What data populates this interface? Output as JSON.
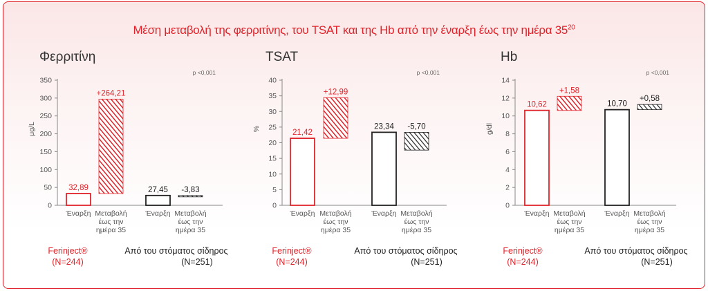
{
  "title": "Μέση μεταβολή της φερριτίνης, του TSAT και της Hb από την έναρξη έως την ημέρα 35",
  "title_ref": "20",
  "colors": {
    "red": "#e0232a",
    "black": "#222222",
    "axis": "#888888"
  },
  "legend": {
    "ferinject": "Ferinject®",
    "ferinject_n": "(N=244)",
    "oral": "Από του στόματος σίδηρος",
    "oral_n": "(N=251)"
  },
  "chart_data": [
    {
      "type": "bar",
      "title": "Φερριτίνη",
      "pvalue": "p <0,001",
      "ylabel": "μg/L",
      "ylim": [
        0,
        350
      ],
      "yticks": [
        "0",
        "50",
        "100",
        "150",
        "200",
        "250",
        "300",
        "350"
      ],
      "categories": [
        "Έναρξη",
        "Μεταβολή έως την ημέρα 35",
        "Έναρξη",
        "Μεταβολή έως την ημέρα 35"
      ],
      "series": [
        {
          "name": "Ferinject®",
          "baseline": 32.89,
          "baseline_label": "32,89",
          "change": 264.21,
          "change_label": "+264,21"
        },
        {
          "name": "Από του στόματος σίδηρος",
          "baseline": 27.45,
          "baseline_label": "27,45",
          "change": -3.83,
          "change_label": "-3,83"
        }
      ]
    },
    {
      "type": "bar",
      "title": "TSAT",
      "pvalue": "p <0,001",
      "ylabel": "%",
      "ylim": [
        0,
        40
      ],
      "yticks": [
        "0",
        "5",
        "10",
        "15",
        "20",
        "25",
        "30",
        "35",
        "40"
      ],
      "categories": [
        "Έναρξη",
        "Μεταβολή έως την ημέρα 35",
        "Έναρξη",
        "Μεταβολή έως την ημέρα 35"
      ],
      "series": [
        {
          "name": "Ferinject®",
          "baseline": 21.42,
          "baseline_label": "21,42",
          "change": 12.99,
          "change_label": "+12,99"
        },
        {
          "name": "Από του στόματος σίδηρος",
          "baseline": 23.34,
          "baseline_label": "23,34",
          "change": -5.7,
          "change_label": "-5,70"
        }
      ]
    },
    {
      "type": "bar",
      "title": "Hb",
      "pvalue": "p <0,001",
      "ylabel": "g/dl",
      "ylim": [
        0,
        14
      ],
      "yticks": [
        "0",
        "2",
        "4",
        "6",
        "8",
        "10",
        "12",
        "14"
      ],
      "categories": [
        "Έναρξη",
        "Μεταβολή έως την ημέρα 35",
        "Έναρξη",
        "Μεταβολή έως την ημέρα 35"
      ],
      "series": [
        {
          "name": "Ferinject®",
          "baseline": 10.62,
          "baseline_label": "10,62",
          "change": 1.58,
          "change_label": "+1,58"
        },
        {
          "name": "Από του στόματος σίδηρος",
          "baseline": 10.7,
          "baseline_label": "10,70",
          "change": 0.58,
          "change_label": "+0,58"
        }
      ]
    }
  ],
  "xlabels": {
    "baseline": "Έναρξη",
    "change_l1": "Μεταβολή",
    "change_l2": "έως την",
    "change_l3": "ημέρα 35"
  }
}
